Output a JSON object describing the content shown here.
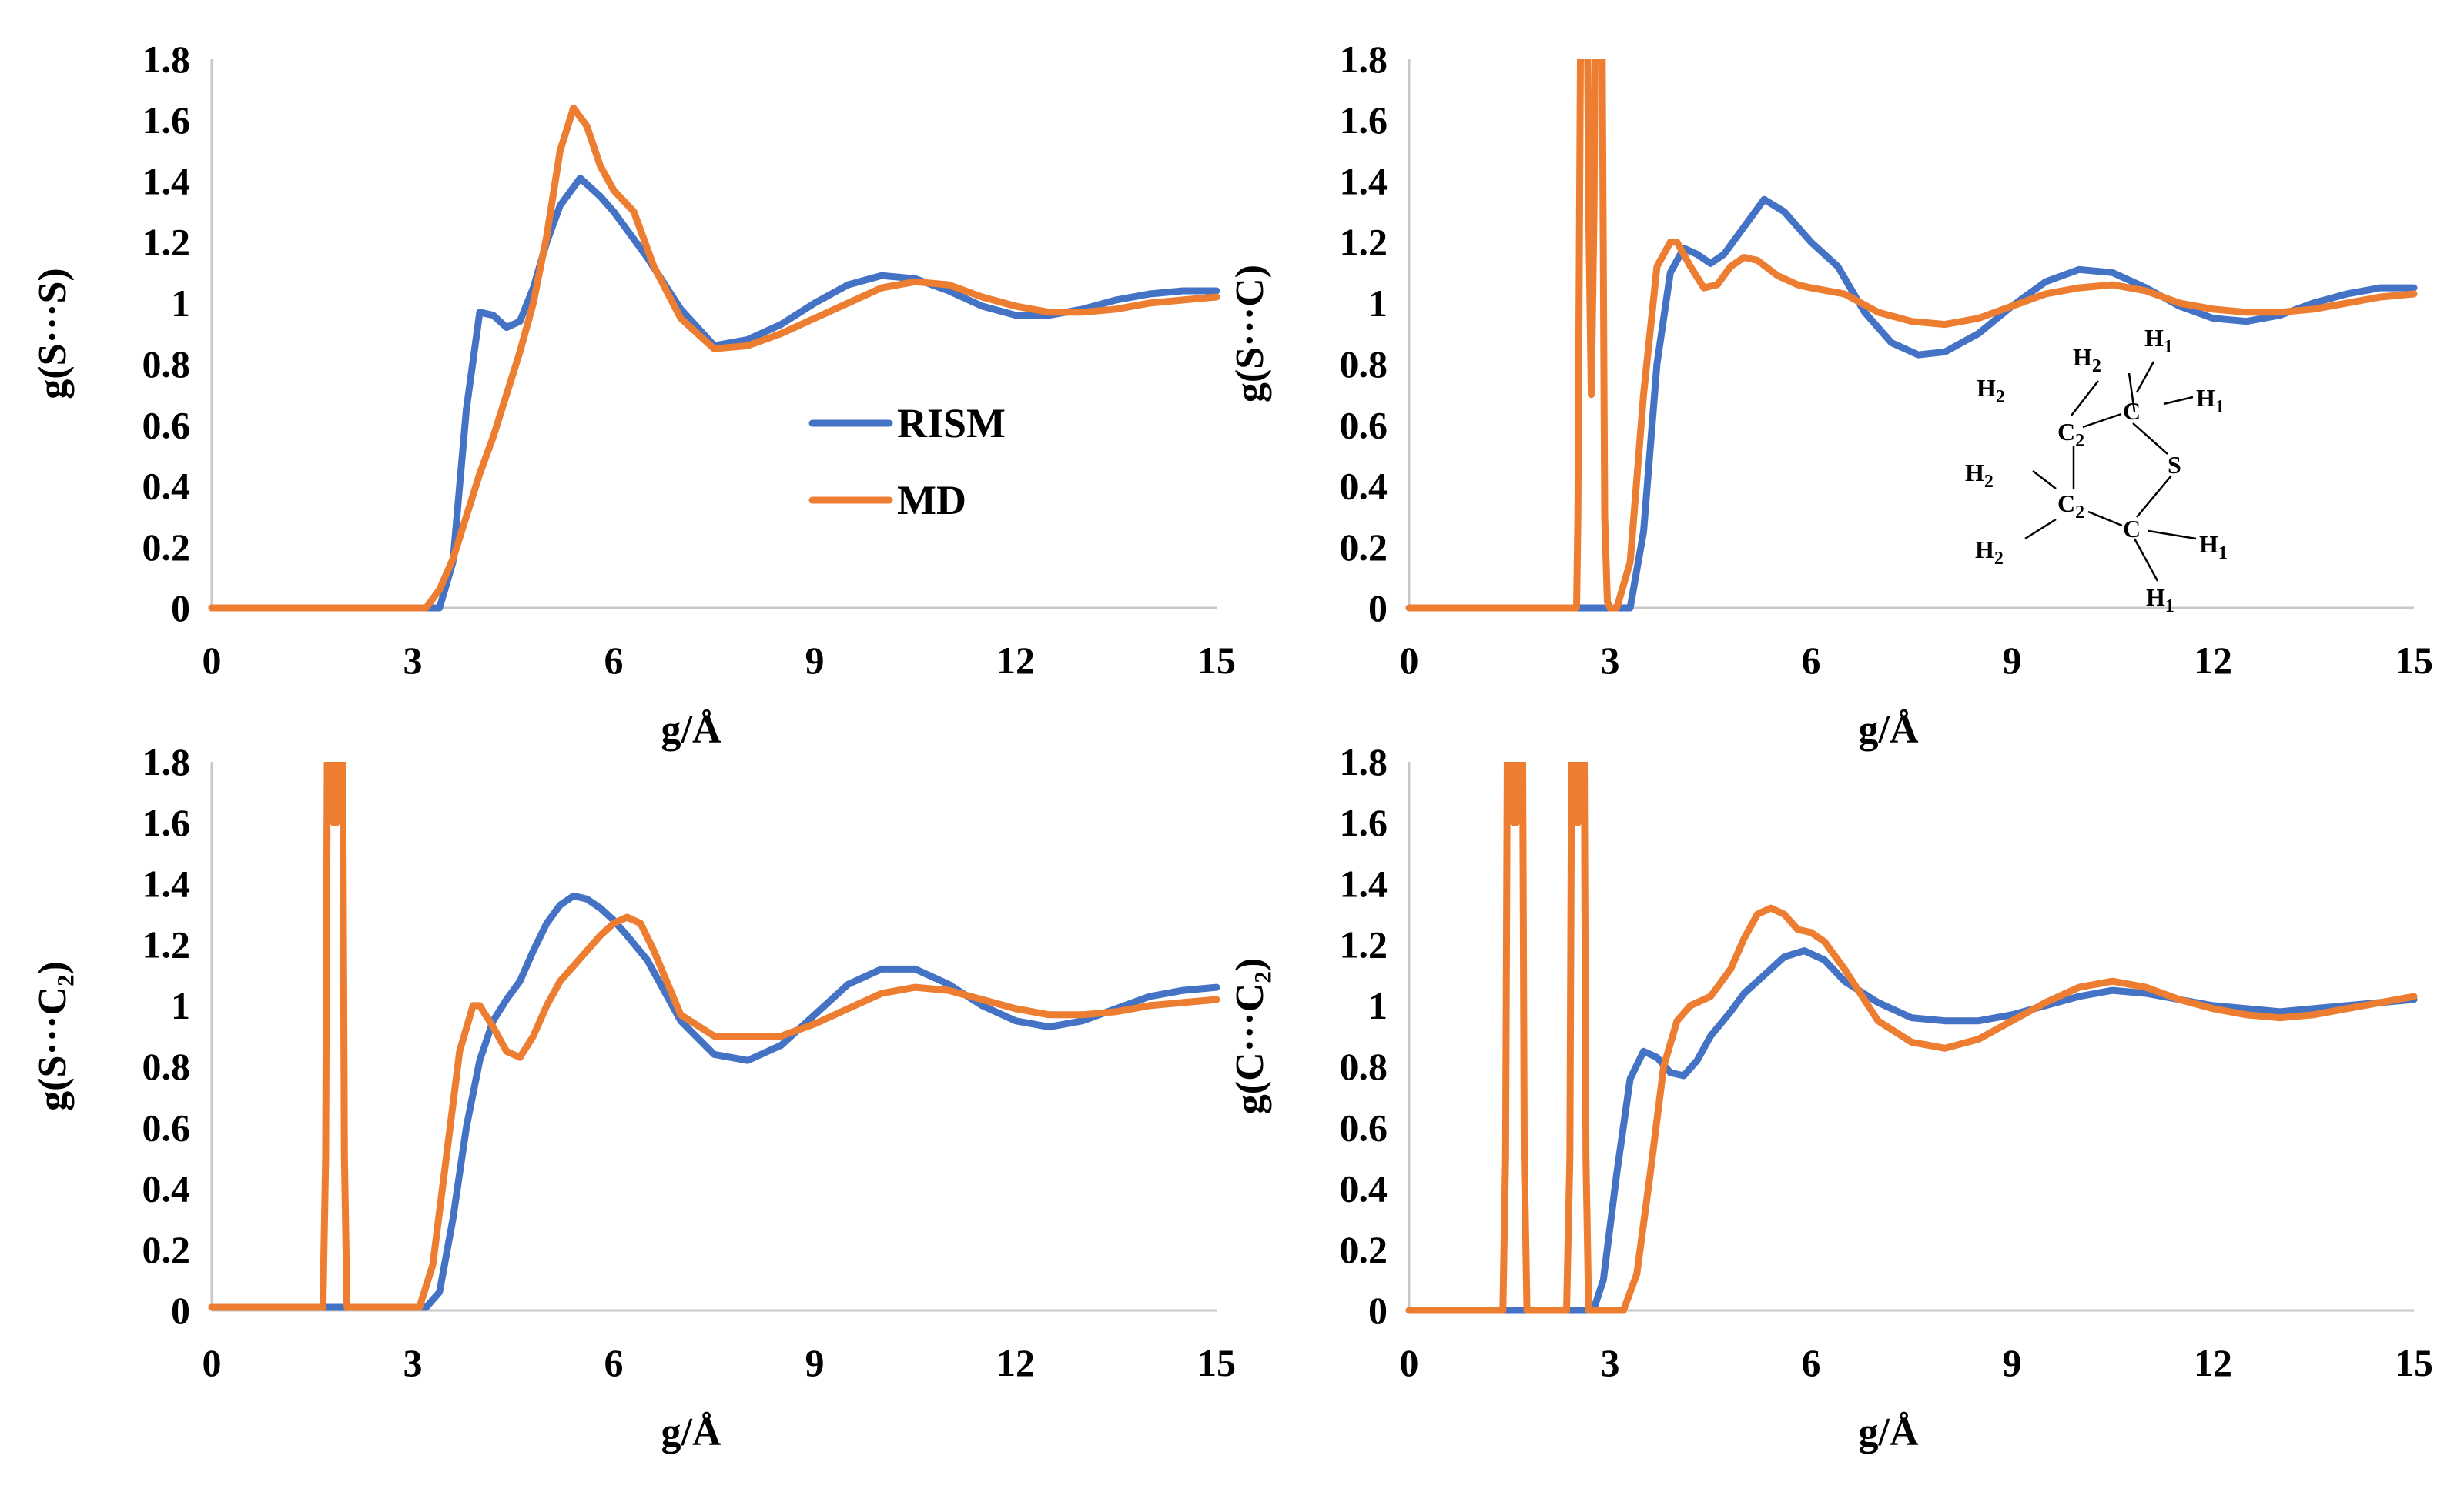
{
  "figure": {
    "legend": [
      {
        "name": "RISM",
        "color": "#4472C4"
      },
      {
        "name": "MD",
        "color": "#ED7D31"
      }
    ],
    "molecule": {
      "labels": [
        {
          "base": "H",
          "sub": "2"
        },
        {
          "base": "H",
          "sub": "2"
        },
        {
          "base": "H",
          "sub": "1"
        },
        {
          "base": "H",
          "sub": "1"
        },
        {
          "base": "C",
          "sub": "2"
        },
        {
          "base": "C",
          "sub": ""
        },
        {
          "base": "S",
          "sub": ""
        },
        {
          "base": "H",
          "sub": "2"
        },
        {
          "base": "C",
          "sub": "2"
        },
        {
          "base": "C",
          "sub": ""
        },
        {
          "base": "H",
          "sub": "1"
        },
        {
          "base": "H",
          "sub": "2"
        },
        {
          "base": "H",
          "sub": "1"
        }
      ]
    }
  },
  "chart_data": [
    {
      "type": "line",
      "ylabel": "g(S···S)",
      "xlabel": "g/Å",
      "xlim": [
        0,
        15
      ],
      "ylim": [
        0,
        1.8
      ],
      "xticks": [
        "0",
        "3",
        "6",
        "9",
        "12",
        "15"
      ],
      "yticks": [
        "0",
        "0.2",
        "0.4",
        "0.6",
        "0.8",
        "1",
        "1.2",
        "1.4",
        "1.6",
        "1.8"
      ],
      "grid": false,
      "legend_position": "center-right",
      "series": [
        {
          "name": "RISM",
          "color": "#4472C4",
          "x": [
            0,
            3.4,
            3.6,
            3.8,
            4.0,
            4.2,
            4.4,
            4.6,
            4.8,
            5.0,
            5.2,
            5.5,
            5.8,
            6.0,
            6.5,
            7.0,
            7.5,
            8.0,
            8.5,
            9.0,
            9.5,
            10.0,
            10.5,
            11.0,
            11.5,
            12.0,
            12.5,
            13.0,
            13.5,
            14.0,
            14.5,
            15.0
          ],
          "y": [
            0,
            0,
            0.15,
            0.65,
            0.97,
            0.96,
            0.92,
            0.94,
            1.05,
            1.2,
            1.32,
            1.41,
            1.35,
            1.3,
            1.15,
            0.98,
            0.86,
            0.88,
            0.93,
            1.0,
            1.06,
            1.09,
            1.08,
            1.04,
            0.99,
            0.96,
            0.96,
            0.98,
            1.01,
            1.03,
            1.04,
            1.04
          ]
        },
        {
          "name": "MD",
          "color": "#ED7D31",
          "x": [
            0,
            3.2,
            3.4,
            3.6,
            3.8,
            4.0,
            4.2,
            4.4,
            4.6,
            4.8,
            5.0,
            5.2,
            5.4,
            5.6,
            5.8,
            6.0,
            6.3,
            6.6,
            7.0,
            7.5,
            8.0,
            8.5,
            9.0,
            9.5,
            10.0,
            10.5,
            11.0,
            11.5,
            12.0,
            12.5,
            13.0,
            13.5,
            14.0,
            14.5,
            15.0
          ],
          "y": [
            0,
            0,
            0.06,
            0.16,
            0.3,
            0.44,
            0.56,
            0.7,
            0.84,
            1.0,
            1.22,
            1.5,
            1.64,
            1.58,
            1.45,
            1.37,
            1.3,
            1.12,
            0.95,
            0.85,
            0.86,
            0.9,
            0.95,
            1.0,
            1.05,
            1.07,
            1.06,
            1.02,
            0.99,
            0.97,
            0.97,
            0.98,
            1.0,
            1.01,
            1.02
          ]
        }
      ]
    },
    {
      "type": "line",
      "ylabel": "g(S···C)",
      "xlabel": "g/Å",
      "xlim": [
        0,
        15
      ],
      "ylim": [
        0,
        1.8
      ],
      "xticks": [
        "0",
        "3",
        "6",
        "9",
        "12",
        "15"
      ],
      "yticks": [
        "0",
        "0.2",
        "0.4",
        "0.6",
        "0.8",
        "1",
        "1.2",
        "1.4",
        "1.6",
        "1.8"
      ],
      "grid": false,
      "series": [
        {
          "name": "RISM",
          "color": "#4472C4",
          "x": [
            0,
            3.3,
            3.5,
            3.7,
            3.9,
            4.1,
            4.3,
            4.5,
            4.7,
            5.0,
            5.3,
            5.6,
            6.0,
            6.4,
            6.8,
            7.2,
            7.6,
            8.0,
            8.5,
            9.0,
            9.5,
            10.0,
            10.5,
            11.0,
            11.5,
            12.0,
            12.5,
            13.0,
            13.5,
            14.0,
            14.5,
            15.0
          ],
          "y": [
            0,
            0,
            0.25,
            0.8,
            1.1,
            1.18,
            1.16,
            1.13,
            1.16,
            1.25,
            1.34,
            1.3,
            1.2,
            1.12,
            0.97,
            0.87,
            0.83,
            0.84,
            0.9,
            0.99,
            1.07,
            1.11,
            1.1,
            1.05,
            0.99,
            0.95,
            0.94,
            0.96,
            1.0,
            1.03,
            1.05,
            1.05
          ]
        },
        {
          "name": "MD",
          "color": "#ED7D31",
          "x": [
            0,
            2.5,
            2.52,
            2.56,
            2.6,
            2.64,
            2.68,
            2.72,
            2.76,
            2.8,
            2.84,
            2.88,
            2.92,
            2.96,
            3.0,
            3.1,
            3.3,
            3.5,
            3.7,
            3.9,
            4.0,
            4.2,
            4.4,
            4.6,
            4.8,
            5.0,
            5.2,
            5.5,
            5.8,
            6.0,
            6.5,
            7.0,
            7.5,
            8.0,
            8.5,
            9.0,
            9.5,
            10.0,
            10.5,
            11.0,
            11.5,
            12.0,
            12.5,
            13.0,
            13.5,
            14.0,
            14.5,
            15.0
          ],
          "y": [
            0,
            0,
            0.3,
            1.9,
            2.6,
            2.6,
            1.3,
            0.7,
            1.3,
            2.6,
            2.6,
            1.9,
            0.3,
            0.02,
            0,
            0,
            0.15,
            0.7,
            1.12,
            1.2,
            1.2,
            1.12,
            1.05,
            1.06,
            1.12,
            1.15,
            1.14,
            1.09,
            1.06,
            1.05,
            1.03,
            0.97,
            0.94,
            0.93,
            0.95,
            0.99,
            1.03,
            1.05,
            1.06,
            1.04,
            1.0,
            0.98,
            0.97,
            0.97,
            0.98,
            1.0,
            1.02,
            1.03
          ]
        }
      ]
    },
    {
      "type": "line",
      "ylabel": "g(S···C₂)",
      "xlabel": "g/Å",
      "xlim": [
        0,
        15
      ],
      "ylim": [
        0,
        1.8
      ],
      "xticks": [
        "0",
        "3",
        "6",
        "9",
        "12",
        "15"
      ],
      "yticks": [
        "0",
        "0.2",
        "0.4",
        "0.6",
        "0.8",
        "1",
        "1.2",
        "1.4",
        "1.6",
        "1.8"
      ],
      "grid": false,
      "series": [
        {
          "name": "RISM",
          "color": "#4472C4",
          "x": [
            0,
            3.2,
            3.4,
            3.6,
            3.8,
            4.0,
            4.2,
            4.4,
            4.6,
            4.8,
            5.0,
            5.2,
            5.4,
            5.6,
            5.8,
            6.0,
            6.2,
            6.5,
            7.0,
            7.5,
            8.0,
            8.5,
            9.0,
            9.5,
            10.0,
            10.5,
            11.0,
            11.5,
            12.0,
            12.5,
            13.0,
            13.5,
            14.0,
            14.5,
            15.0
          ],
          "y": [
            0.01,
            0.01,
            0.06,
            0.3,
            0.6,
            0.82,
            0.95,
            1.02,
            1.08,
            1.18,
            1.27,
            1.33,
            1.36,
            1.35,
            1.32,
            1.28,
            1.23,
            1.15,
            0.95,
            0.84,
            0.82,
            0.87,
            0.97,
            1.07,
            1.12,
            1.12,
            1.07,
            1.0,
            0.95,
            0.93,
            0.95,
            0.99,
            1.03,
            1.05,
            1.06
          ]
        },
        {
          "name": "MD",
          "color": "#ED7D31",
          "x": [
            0,
            1.66,
            1.7,
            1.74,
            1.78,
            1.82,
            1.86,
            1.9,
            1.94,
            1.98,
            2.02,
            3.1,
            3.3,
            3.5,
            3.7,
            3.9,
            4.0,
            4.2,
            4.4,
            4.6,
            4.8,
            5.0,
            5.2,
            5.4,
            5.6,
            5.8,
            6.0,
            6.2,
            6.4,
            6.6,
            7.0,
            7.5,
            8.0,
            8.5,
            9.0,
            9.5,
            10.0,
            10.5,
            11.0,
            11.5,
            12.0,
            12.5,
            13.0,
            13.5,
            14.0,
            14.5,
            15.0
          ],
          "y": [
            0.01,
            0.01,
            0.5,
            2.6,
            2.6,
            1.6,
            1.6,
            2.6,
            2.6,
            0.5,
            0.01,
            0.01,
            0.15,
            0.5,
            0.85,
            1.0,
            1.0,
            0.93,
            0.85,
            0.83,
            0.9,
            1.0,
            1.08,
            1.13,
            1.18,
            1.23,
            1.27,
            1.29,
            1.27,
            1.18,
            0.97,
            0.9,
            0.9,
            0.9,
            0.94,
            0.99,
            1.04,
            1.06,
            1.05,
            1.02,
            0.99,
            0.97,
            0.97,
            0.98,
            1.0,
            1.01,
            1.02
          ]
        }
      ]
    },
    {
      "type": "line",
      "ylabel": "g(C···C₂)",
      "xlabel": "g/Å",
      "xlim": [
        0,
        15
      ],
      "ylim": [
        0,
        1.8
      ],
      "xticks": [
        "0",
        "3",
        "6",
        "9",
        "12",
        "15"
      ],
      "yticks": [
        "0",
        "0.2",
        "0.4",
        "0.6",
        "0.8",
        "1",
        "1.2",
        "1.4",
        "1.6",
        "1.8"
      ],
      "grid": false,
      "series": [
        {
          "name": "RISM",
          "color": "#4472C4",
          "x": [
            0,
            2.75,
            2.9,
            3.1,
            3.3,
            3.5,
            3.7,
            3.9,
            4.1,
            4.3,
            4.5,
            4.8,
            5.0,
            5.3,
            5.6,
            5.9,
            6.2,
            6.5,
            7.0,
            7.5,
            8.0,
            8.5,
            9.0,
            9.5,
            10.0,
            10.5,
            11.0,
            11.5,
            12.0,
            12.5,
            13.0,
            13.5,
            14.0,
            14.5,
            15.0
          ],
          "y": [
            0,
            0,
            0.1,
            0.45,
            0.76,
            0.85,
            0.83,
            0.78,
            0.77,
            0.82,
            0.9,
            0.98,
            1.04,
            1.1,
            1.16,
            1.18,
            1.15,
            1.08,
            1.01,
            0.96,
            0.95,
            0.95,
            0.97,
            1.0,
            1.03,
            1.05,
            1.04,
            1.02,
            1.0,
            0.99,
            0.98,
            0.99,
            1.0,
            1.01,
            1.02
          ]
        },
        {
          "name": "MD",
          "color": "#ED7D31",
          "x": [
            0,
            1.4,
            1.44,
            1.48,
            1.52,
            1.56,
            1.6,
            1.64,
            1.68,
            1.72,
            1.76,
            2.35,
            2.4,
            2.44,
            2.48,
            2.52,
            2.56,
            2.6,
            2.64,
            2.68,
            3.2,
            3.4,
            3.6,
            3.8,
            4.0,
            4.2,
            4.5,
            4.8,
            5.0,
            5.2,
            5.4,
            5.6,
            5.8,
            6.0,
            6.2,
            6.5,
            7.0,
            7.5,
            8.0,
            8.5,
            9.0,
            9.5,
            10.0,
            10.5,
            11.0,
            11.5,
            12.0,
            12.5,
            13.0,
            13.5,
            14.0,
            14.5,
            15.0
          ],
          "y": [
            0,
            0,
            0.5,
            2.6,
            2.6,
            1.6,
            1.6,
            2.6,
            2.6,
            0.5,
            0,
            0,
            0.5,
            2.6,
            2.6,
            1.6,
            2.6,
            2.6,
            0.5,
            0,
            0,
            0.12,
            0.45,
            0.8,
            0.95,
            1.0,
            1.03,
            1.12,
            1.22,
            1.3,
            1.32,
            1.3,
            1.25,
            1.24,
            1.21,
            1.12,
            0.95,
            0.88,
            0.86,
            0.89,
            0.95,
            1.01,
            1.06,
            1.08,
            1.06,
            1.02,
            0.99,
            0.97,
            0.96,
            0.97,
            0.99,
            1.01,
            1.03
          ]
        }
      ]
    }
  ]
}
